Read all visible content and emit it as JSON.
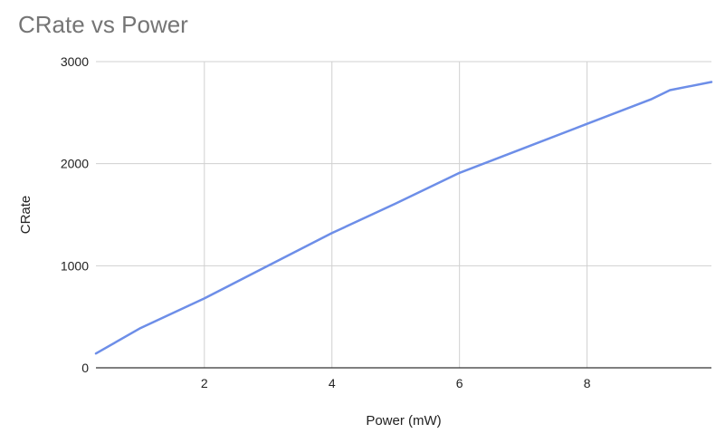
{
  "chart_data": {
    "type": "line",
    "title": "CRate vs Power",
    "xlabel": "Power (mW)",
    "ylabel": "CRate",
    "xlim": [
      0.3,
      9.95
    ],
    "ylim": [
      0,
      3000
    ],
    "x_ticks": [
      2,
      4,
      6,
      8
    ],
    "y_ticks": [
      0,
      1000,
      2000,
      3000
    ],
    "grid": true,
    "legend": "none",
    "series": [
      {
        "color": "#6d8ee8",
        "x": [
          0.3,
          1.0,
          2.0,
          3.0,
          4.0,
          5.0,
          6.0,
          7.0,
          8.0,
          9.0,
          9.3,
          9.95
        ],
        "y": [
          140,
          390,
          680,
          1000,
          1320,
          1610,
          1910,
          2150,
          2390,
          2630,
          2720,
          2800
        ]
      }
    ]
  }
}
